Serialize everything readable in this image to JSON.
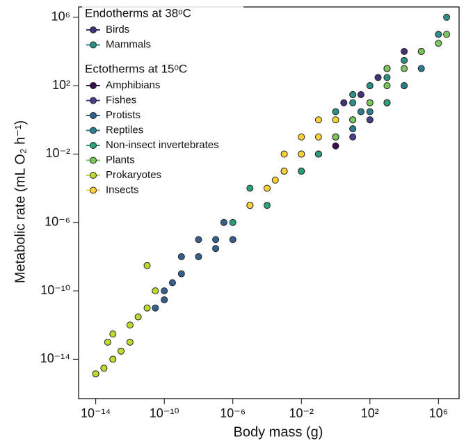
{
  "chart_data": {
    "type": "scatter",
    "x_label": "Body mass (g)",
    "y_label": "Metabolic rate (mL O₂ h⁻¹)",
    "log_x": true,
    "log_y": true,
    "xlim": [
      1e-15,
      16000000.0
    ],
    "ylim": [
      5e-17,
      4000000.0
    ],
    "xticks": [
      {
        "value": 1e-14,
        "label": "10⁻¹⁴"
      },
      {
        "value": 1e-10,
        "label": "10⁻¹⁰"
      },
      {
        "value": 1e-06,
        "label": "10⁻⁶"
      },
      {
        "value": 0.01,
        "label": "10⁻²"
      },
      {
        "value": 100,
        "label": "10²"
      },
      {
        "value": 1000000,
        "label": "10⁶"
      }
    ],
    "yticks": [
      {
        "value": 1e-14,
        "label": "10⁻¹⁴"
      },
      {
        "value": 1e-10,
        "label": "10⁻¹⁰"
      },
      {
        "value": 1e-06,
        "label": "10⁻⁶"
      },
      {
        "value": 0.01,
        "label": "10⁻²"
      },
      {
        "value": 100,
        "label": "10²"
      },
      {
        "value": 1000000,
        "label": "10⁶"
      }
    ],
    "legend_position": "upper left",
    "legend_titles": [
      "Endotherms at 38ᵒC",
      "Ectotherms at 15ᵒC"
    ],
    "series": [
      {
        "name": "Birds",
        "color": "#45307a",
        "x": [
          3,
          10,
          30,
          100,
          300,
          1000,
          10000
        ],
        "values": [
          10,
          30,
          30,
          100,
          300,
          1000,
          10000
        ]
      },
      {
        "name": "Mammals",
        "color": "#2f8f87",
        "x": [
          1,
          10,
          10,
          100,
          1000,
          1000,
          10000,
          100000,
          1000000,
          3000000
        ],
        "values": [
          3,
          10,
          30,
          100,
          300,
          1000,
          3000,
          10000,
          100000,
          1000000
        ]
      },
      {
        "name": "Amphibians",
        "color": "#3a0f4e",
        "x": [
          0.01,
          0.1,
          1,
          1,
          10,
          100,
          1000
        ],
        "values": [
          0.001,
          0.01,
          0.03,
          0.1,
          0.3,
          1,
          10
        ]
      },
      {
        "name": "Fishes",
        "color": "#46408a",
        "x": [
          0.01,
          0.1,
          1,
          10,
          10,
          100,
          1000,
          10000
        ],
        "values": [
          0.001,
          0.01,
          0.1,
          0.1,
          1,
          1,
          10,
          100
        ]
      },
      {
        "name": "Protists",
        "color": "#35608d",
        "x": [
          3e-11,
          1e-10,
          1e-10,
          3e-10,
          1e-09,
          1e-09,
          1e-08,
          1e-08,
          1e-07,
          1e-07,
          3e-07,
          1e-06
        ],
        "values": [
          1e-11,
          3e-11,
          1e-10,
          3e-10,
          1e-09,
          1e-08,
          1e-08,
          1e-07,
          3e-08,
          1e-07,
          1e-06,
          1e-07
        ]
      },
      {
        "name": "Reptiles",
        "color": "#2b7d8e",
        "x": [
          1,
          10,
          30,
          100,
          1000,
          10000,
          100000
        ],
        "values": [
          0.1,
          0.3,
          3,
          3,
          10,
          100,
          1000
        ]
      },
      {
        "name": "Non-insect invertebrates",
        "color": "#2aa07d",
        "x": [
          1e-06,
          1e-05,
          1e-05,
          0.0001,
          0.001,
          0.01,
          0.1,
          1,
          10,
          100,
          1000
        ],
        "values": [
          1e-06,
          0.0001,
          1e-05,
          1e-05,
          0.001,
          0.001,
          0.01,
          0.1,
          1,
          10,
          10
        ]
      },
      {
        "name": "Plants",
        "color": "#7cc45d",
        "x": [
          0.01,
          1,
          10,
          100,
          1000,
          1000,
          10000,
          100000,
          1000000,
          3000000
        ],
        "values": [
          0.01,
          0.1,
          1,
          10,
          100,
          1000,
          1000,
          10000,
          30000,
          100000
        ]
      },
      {
        "name": "Prokaryotes",
        "color": "#bddb2f",
        "x": [
          1e-14,
          3e-14,
          5e-14,
          1e-13,
          1e-13,
          3e-13,
          1e-12,
          1e-12,
          3e-12,
          1e-11,
          1e-11,
          3e-11
        ],
        "values": [
          1.4e-15,
          3e-15,
          1e-13,
          1e-14,
          3e-13,
          3e-14,
          1e-13,
          1e-12,
          3e-12,
          1e-11,
          3e-09,
          1e-10
        ]
      },
      {
        "name": "Insects",
        "color": "#fbd13a",
        "x": [
          1e-05,
          0.0001,
          0.0003,
          0.001,
          0.001,
          0.01,
          0.01,
          0.1,
          0.1,
          1
        ],
        "values": [
          1e-05,
          0.0001,
          0.0003,
          0.001,
          0.01,
          0.01,
          0.1,
          0.1,
          1,
          1
        ]
      }
    ]
  }
}
